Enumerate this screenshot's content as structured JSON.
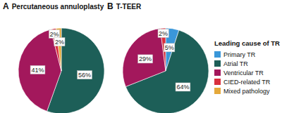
{
  "chart_data": [
    {
      "type": "pie",
      "annotation": "A",
      "title": "Percutaneous annuloplasty",
      "categories": [
        "Primary TR",
        "Atrial TR",
        "Ventricular TR",
        "CIED-related TR",
        "Mixed pathology"
      ],
      "values": [
        null,
        56,
        41,
        2,
        2
      ],
      "value_labels": [
        null,
        "56%",
        "41%",
        "2%",
        "2%"
      ],
      "colors": [
        "#3a97d9",
        "#1d5f58",
        "#a3185c",
        "#d9303e",
        "#e5a93b"
      ],
      "data_labels": true
    },
    {
      "type": "pie",
      "annotation": "B",
      "title": "T-TEER",
      "categories": [
        "Primary TR",
        "Atrial TR",
        "Ventricular TR",
        "CIED-related TR",
        "Mixed pathology"
      ],
      "values": [
        5,
        64,
        29,
        2,
        null
      ],
      "value_labels": [
        "5%",
        "64%",
        "29%",
        "2%",
        null
      ],
      "colors": [
        "#3a97d9",
        "#1d5f58",
        "#a3185c",
        "#d9303e",
        "#e5a93b"
      ],
      "data_labels": true,
      "legend": "right",
      "legend_title": "Leading cause of TR"
    }
  ]
}
